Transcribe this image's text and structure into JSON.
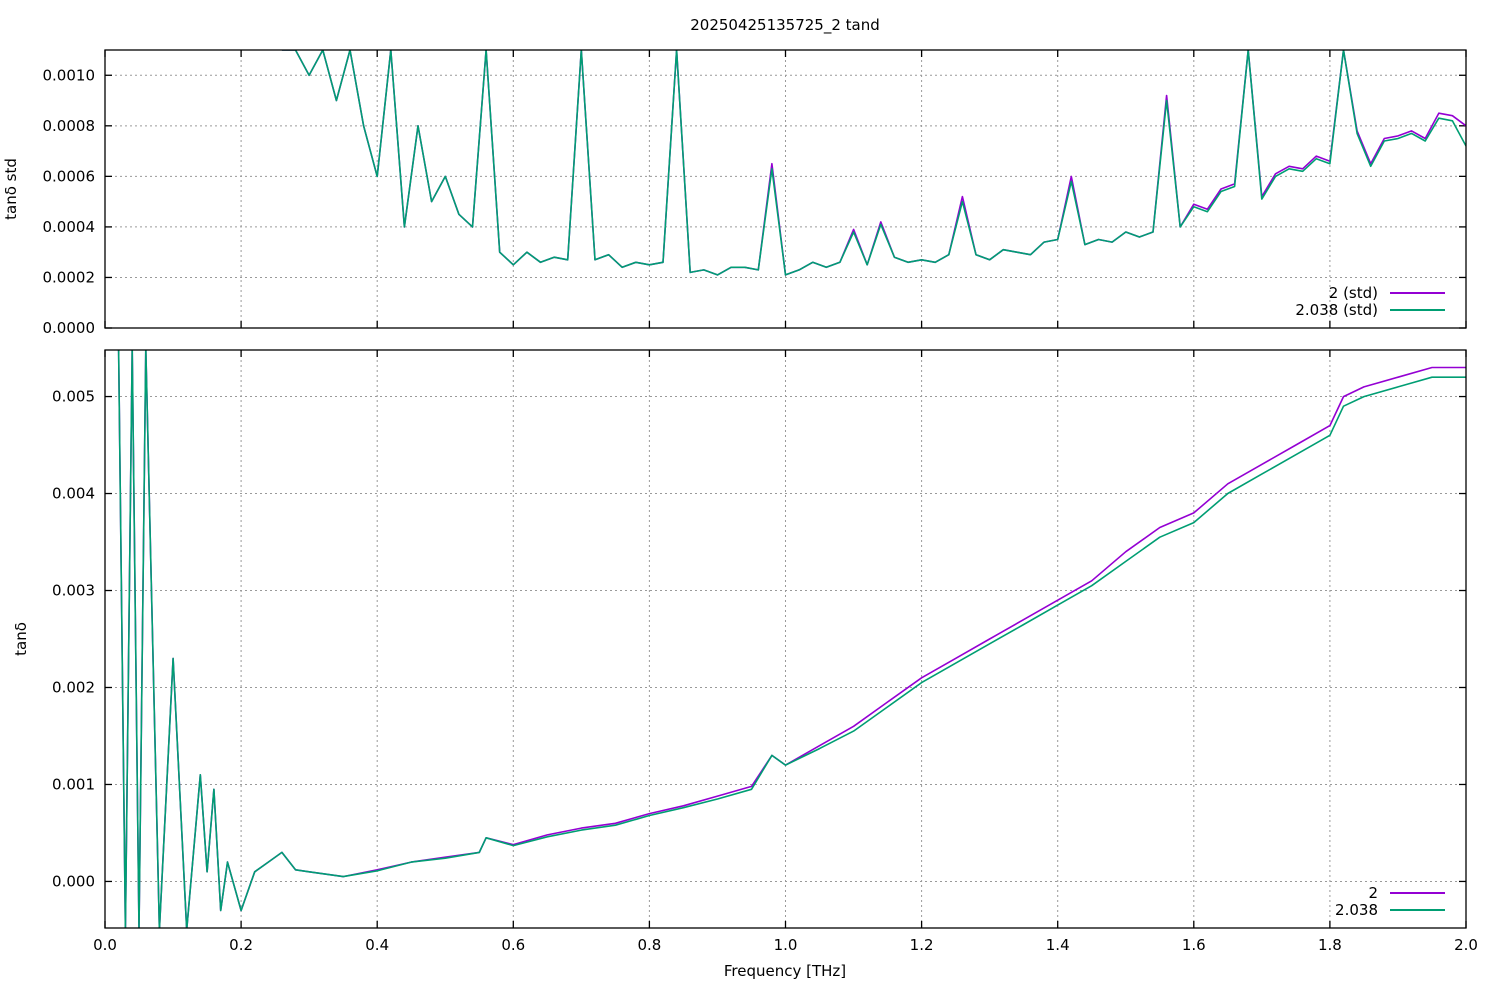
{
  "figure": {
    "title": "20250425135725_2 tand",
    "xlabel": "Frequency [THz]"
  },
  "chart_data": [
    {
      "type": "line",
      "ylabel": "tanδ std",
      "xlim": [
        0,
        2.0
      ],
      "ylim": [
        0,
        0.0011
      ],
      "xticks": [
        0.0,
        0.2,
        0.4,
        0.6,
        0.8,
        1.0,
        1.2,
        1.4,
        1.6,
        1.8,
        2.0
      ],
      "yticks": [
        "0.0000",
        "0.0002",
        "0.0004",
        "0.0006",
        "0.0008",
        "0.0010"
      ],
      "ytick_values": [
        0,
        0.0002,
        0.0004,
        0.0006,
        0.0008,
        0.001
      ],
      "grid": true,
      "legend_position": "bottom-right",
      "x": [
        0.26,
        0.28,
        0.3,
        0.32,
        0.34,
        0.36,
        0.38,
        0.4,
        0.42,
        0.44,
        0.46,
        0.48,
        0.5,
        0.52,
        0.54,
        0.56,
        0.58,
        0.6,
        0.62,
        0.64,
        0.66,
        0.68,
        0.7,
        0.72,
        0.74,
        0.76,
        0.78,
        0.8,
        0.82,
        0.84,
        0.86,
        0.88,
        0.9,
        0.92,
        0.94,
        0.96,
        0.98,
        1.0,
        1.02,
        1.04,
        1.06,
        1.08,
        1.1,
        1.12,
        1.14,
        1.16,
        1.18,
        1.2,
        1.22,
        1.24,
        1.26,
        1.28,
        1.3,
        1.32,
        1.34,
        1.36,
        1.38,
        1.4,
        1.42,
        1.44,
        1.46,
        1.48,
        1.5,
        1.52,
        1.54,
        1.56,
        1.58,
        1.6,
        1.62,
        1.64,
        1.66,
        1.68,
        1.7,
        1.72,
        1.74,
        1.76,
        1.78,
        1.8,
        1.82,
        1.84,
        1.86,
        1.88,
        1.9,
        1.92,
        1.94,
        1.96,
        1.98,
        2.0
      ],
      "series": [
        {
          "name": "2 (std)",
          "color": "#9400d3",
          "values": [
            0.0011,
            0.0011,
            0.001,
            0.0011,
            0.0009,
            0.0011,
            0.0008,
            0.0006,
            0.0011,
            0.0004,
            0.0008,
            0.0005,
            0.0006,
            0.00045,
            0.0004,
            0.0011,
            0.0003,
            0.00025,
            0.0003,
            0.00026,
            0.00028,
            0.00027,
            0.0011,
            0.00027,
            0.00029,
            0.00024,
            0.00026,
            0.00025,
            0.00026,
            0.0011,
            0.00022,
            0.00023,
            0.00021,
            0.00024,
            0.00024,
            0.00023,
            0.00065,
            0.00021,
            0.00023,
            0.00026,
            0.00024,
            0.00026,
            0.00039,
            0.00025,
            0.00042,
            0.00028,
            0.00026,
            0.00027,
            0.00026,
            0.00029,
            0.00052,
            0.00029,
            0.00027,
            0.00031,
            0.0003,
            0.00029,
            0.00034,
            0.00035,
            0.0006,
            0.00033,
            0.00035,
            0.00034,
            0.00038,
            0.00036,
            0.00038,
            0.00092,
            0.0004,
            0.00049,
            0.00047,
            0.00055,
            0.00057,
            0.0011,
            0.00052,
            0.00061,
            0.00064,
            0.00063,
            0.00068,
            0.00066,
            0.0011,
            0.00078,
            0.00065,
            0.00075,
            0.00076,
            0.00078,
            0.00075,
            0.00085,
            0.00084,
            0.0008
          ]
        },
        {
          "name": "2.038 (std)",
          "color": "#009e73",
          "values": [
            0.0011,
            0.0011,
            0.001,
            0.0011,
            0.0009,
            0.0011,
            0.0008,
            0.0006,
            0.0011,
            0.0004,
            0.0008,
            0.0005,
            0.0006,
            0.00045,
            0.0004,
            0.0011,
            0.0003,
            0.00025,
            0.0003,
            0.00026,
            0.00028,
            0.00027,
            0.0011,
            0.00027,
            0.00029,
            0.00024,
            0.00026,
            0.00025,
            0.00026,
            0.0011,
            0.00022,
            0.00023,
            0.00021,
            0.00024,
            0.00024,
            0.00023,
            0.00063,
            0.00021,
            0.00023,
            0.00026,
            0.00024,
            0.00026,
            0.00038,
            0.00025,
            0.00041,
            0.00028,
            0.00026,
            0.00027,
            0.00026,
            0.00029,
            0.0005,
            0.00029,
            0.00027,
            0.00031,
            0.0003,
            0.00029,
            0.00034,
            0.00035,
            0.00058,
            0.00033,
            0.00035,
            0.00034,
            0.00038,
            0.00036,
            0.00038,
            0.0009,
            0.0004,
            0.00048,
            0.00046,
            0.00054,
            0.00056,
            0.0011,
            0.00051,
            0.0006,
            0.00063,
            0.00062,
            0.00067,
            0.00065,
            0.0011,
            0.00077,
            0.00064,
            0.00074,
            0.00075,
            0.00077,
            0.00074,
            0.00083,
            0.00082,
            0.00072
          ]
        }
      ]
    },
    {
      "type": "line",
      "ylabel": "tanδ",
      "xlim": [
        0,
        2.0
      ],
      "ylim": [
        -0.00048,
        0.00548
      ],
      "xticks": [
        0.0,
        0.2,
        0.4,
        0.6,
        0.8,
        1.0,
        1.2,
        1.4,
        1.6,
        1.8,
        2.0
      ],
      "yticks": [
        "0.000",
        "0.001",
        "0.002",
        "0.003",
        "0.004",
        "0.005"
      ],
      "ytick_values": [
        0,
        0.001,
        0.002,
        0.003,
        0.004,
        0.005
      ],
      "grid": true,
      "legend_position": "bottom-right",
      "x": [
        0.02,
        0.03,
        0.04,
        0.05,
        0.06,
        0.08,
        0.1,
        0.12,
        0.14,
        0.15,
        0.16,
        0.17,
        0.18,
        0.2,
        0.22,
        0.24,
        0.26,
        0.28,
        0.3,
        0.35,
        0.4,
        0.45,
        0.5,
        0.55,
        0.56,
        0.6,
        0.65,
        0.7,
        0.75,
        0.8,
        0.85,
        0.9,
        0.95,
        0.98,
        1.0,
        1.05,
        1.1,
        1.15,
        1.2,
        1.25,
        1.3,
        1.35,
        1.4,
        1.45,
        1.5,
        1.55,
        1.6,
        1.65,
        1.7,
        1.75,
        1.8,
        1.82,
        1.85,
        1.9,
        1.95,
        2.0
      ],
      "series": [
        {
          "name": "2",
          "color": "#9400d3",
          "values": [
            0.0055,
            -0.0005,
            0.0055,
            -0.0005,
            0.0055,
            -0.0005,
            0.0023,
            -0.0005,
            0.0011,
            0.0001,
            0.00095,
            -0.0003,
            0.0002,
            -0.0003,
            0.0001,
            0.0002,
            0.0003,
            0.00012,
            0.0001,
            5e-05,
            0.00012,
            0.0002,
            0.00025,
            0.0003,
            0.00045,
            0.00038,
            0.00048,
            0.00055,
            0.0006,
            0.0007,
            0.00078,
            0.00088,
            0.00098,
            0.0013,
            0.0012,
            0.0014,
            0.0016,
            0.00185,
            0.0021,
            0.0023,
            0.0025,
            0.0027,
            0.0029,
            0.0031,
            0.0034,
            0.00365,
            0.0038,
            0.0041,
            0.0043,
            0.0045,
            0.0047,
            0.005,
            0.0051,
            0.0052,
            0.0053,
            0.0053
          ]
        },
        {
          "name": "2.038",
          "color": "#009e73",
          "values": [
            0.0055,
            -0.0005,
            0.0055,
            -0.0005,
            0.0055,
            -0.0005,
            0.0023,
            -0.0005,
            0.0011,
            0.0001,
            0.00095,
            -0.0003,
            0.0002,
            -0.0003,
            0.0001,
            0.0002,
            0.0003,
            0.00012,
            0.0001,
            5e-05,
            0.00011,
            0.0002,
            0.00024,
            0.0003,
            0.00045,
            0.00037,
            0.00046,
            0.00053,
            0.00058,
            0.00068,
            0.00076,
            0.00085,
            0.00095,
            0.0013,
            0.0012,
            0.00137,
            0.00155,
            0.0018,
            0.00205,
            0.00225,
            0.00245,
            0.00265,
            0.00285,
            0.00305,
            0.0033,
            0.00355,
            0.0037,
            0.004,
            0.0042,
            0.0044,
            0.0046,
            0.0049,
            0.005,
            0.0051,
            0.0052,
            0.0052
          ]
        }
      ]
    }
  ]
}
